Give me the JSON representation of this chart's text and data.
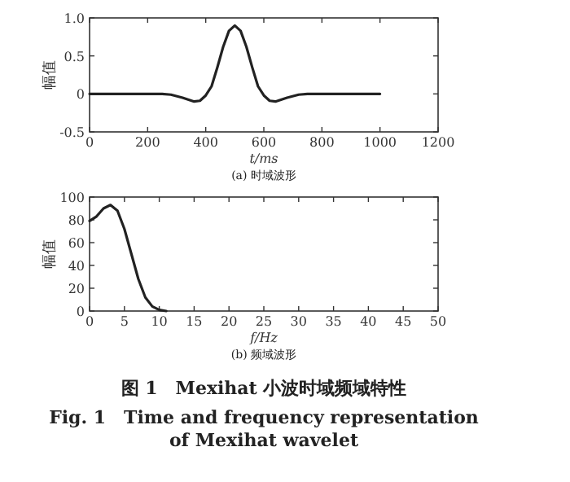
{
  "chart_data": [
    {
      "type": "line",
      "xlabel": "t/ms",
      "ylabel": "幅值",
      "annotations": [
        "(a) 时域波形"
      ],
      "xlim": [
        0,
        1200
      ],
      "ylim": [
        -0.5,
        1
      ],
      "xticks": [
        0,
        200,
        400,
        600,
        800,
        1000,
        1200
      ],
      "yticks": [
        -0.5,
        0,
        0.5,
        {
          "value": 1,
          "label": "1.0"
        }
      ],
      "series": [
        {
          "color": "#222222",
          "x": [
            0,
            250,
            280,
            320,
            360,
            380,
            400,
            420,
            440,
            460,
            480,
            500,
            520,
            540,
            560,
            580,
            600,
            620,
            640,
            680,
            720,
            750,
            1000
          ],
          "values": [
            0,
            0,
            -0.01,
            -0.05,
            -0.1,
            -0.09,
            -0.02,
            0.1,
            0.35,
            0.62,
            0.83,
            0.9,
            0.83,
            0.62,
            0.35,
            0.1,
            -0.02,
            -0.09,
            -0.1,
            -0.05,
            -0.01,
            0,
            0
          ]
        }
      ]
    },
    {
      "type": "line",
      "xlabel": "f/Hz",
      "ylabel": "幅值",
      "annotations": [
        "(b) 频域波形",
        "图 1　Mexihat 小波时域频域特性",
        "Fig. 1　Time and frequency representation of Mexihat wavelet"
      ],
      "xlim": [
        0,
        50
      ],
      "ylim": [
        0,
        100
      ],
      "xticks": [
        0,
        5,
        10,
        15,
        20,
        25,
        30,
        35,
        40,
        45,
        50
      ],
      "yticks": [
        0,
        20,
        40,
        60,
        80,
        100
      ],
      "series": [
        {
          "color": "#222222",
          "x": [
            0,
            1,
            2,
            3,
            4,
            5,
            6,
            7,
            8,
            9,
            10,
            11
          ],
          "values": [
            79,
            83,
            90,
            93,
            88,
            72,
            50,
            28,
            12,
            4,
            1,
            0
          ]
        }
      ]
    }
  ]
}
